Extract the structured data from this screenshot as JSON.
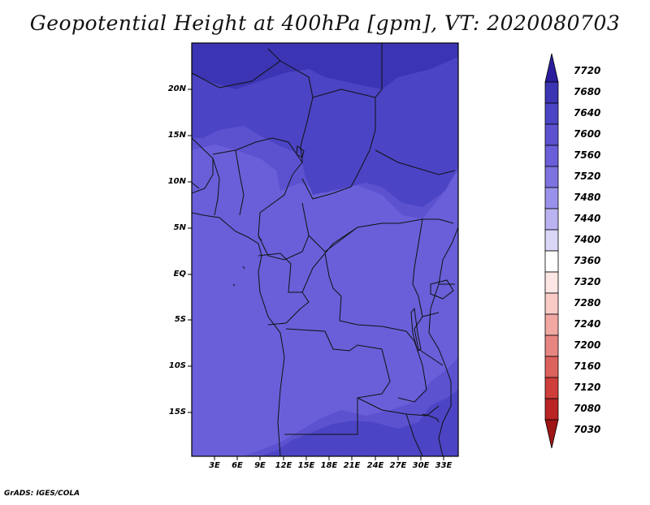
{
  "title": "Geopotential Height at 400hPa [gpm], VT: 2020080703",
  "footer": "GrADS: IGES/COLA",
  "map": {
    "y_ticks": [
      "20N",
      "15N",
      "10N",
      "5N",
      "EQ",
      "5S",
      "10S",
      "15S"
    ],
    "x_ticks": [
      "3E",
      "6E",
      "9E",
      "12E",
      "15E",
      "18E",
      "21E",
      "24E",
      "27E",
      "30E",
      "33E"
    ],
    "lon_range": [
      0,
      35
    ],
    "lat_range": [
      -20,
      24
    ],
    "fill_colors": {
      "7560": "#6a5fd9",
      "7600": "#5c52d0",
      "7640": "#4b44c4",
      "7680": "#3b35b3"
    }
  },
  "colorbar": {
    "labels": [
      "7720",
      "7680",
      "7640",
      "7600",
      "7560",
      "7520",
      "7480",
      "7440",
      "7400",
      "7360",
      "7320",
      "7280",
      "7240",
      "7200",
      "7160",
      "7120",
      "7080",
      "7030"
    ],
    "colors": [
      "#2a1e9c",
      "#3b35b3",
      "#4b44c4",
      "#5c52d0",
      "#6a5fd9",
      "#7d72e0",
      "#9a92ea",
      "#b9b3f1",
      "#d9d6f8",
      "#ffffff",
      "#fde6e4",
      "#f9cbc7",
      "#f2a8a2",
      "#e78680",
      "#dc625d",
      "#cf3e3b",
      "#bb2424",
      "#9e1515"
    ]
  }
}
